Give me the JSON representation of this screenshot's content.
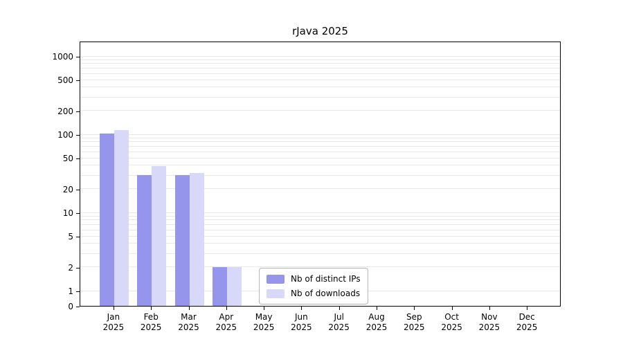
{
  "chart_data": {
    "type": "bar",
    "title": "rJava 2025",
    "x": {
      "months": [
        "Jan",
        "Feb",
        "Mar",
        "Apr",
        "May",
        "Jun",
        "Jul",
        "Aug",
        "Sep",
        "Oct",
        "Nov",
        "Dec"
      ],
      "year": "2025"
    },
    "y_axis": {
      "scale": "log with zero baseline",
      "ticks": [
        0,
        1,
        2,
        5,
        10,
        20,
        50,
        100,
        200,
        500,
        1000
      ],
      "range": [
        0,
        1000
      ],
      "grid": "horizontal minor log gridlines"
    },
    "series": [
      {
        "name": "Nb of distinct IPs",
        "color": "#9595ec",
        "values": [
          102,
          30,
          30,
          2,
          0,
          0,
          0,
          0,
          0,
          0,
          0,
          0
        ]
      },
      {
        "name": "Nb of downloads",
        "color": "#d8d8f8",
        "values": [
          114,
          39,
          32,
          2,
          0,
          0,
          0,
          0,
          0,
          0,
          0,
          0
        ]
      }
    ],
    "legend": {
      "position": "bottom-center-inside"
    }
  }
}
